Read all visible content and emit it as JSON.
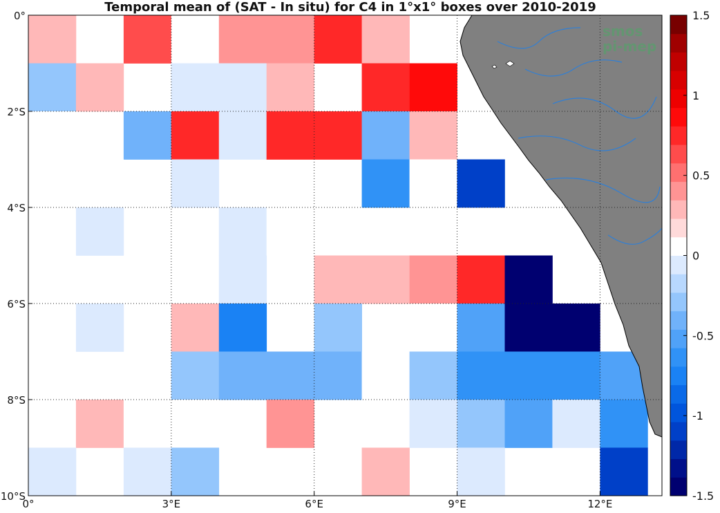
{
  "chart_data": {
    "type": "heatmap",
    "title": "Temporal mean of (SAT - In situ) for C4 in 1°x1° boxes over 2010-2019",
    "x_tick_labels": [
      "0°",
      "3°E",
      "6°E",
      "9°E",
      "12°E"
    ],
    "y_tick_labels": [
      "0°",
      "2°S",
      "4°S",
      "6°S",
      "8°S",
      "10°S"
    ],
    "x_ticks": [
      0,
      3,
      6,
      9,
      12
    ],
    "y_ticks": [
      0,
      -2,
      -4,
      -6,
      -8,
      -10
    ],
    "xlim": [
      0,
      13.3
    ],
    "ylim": [
      -10,
      0
    ],
    "grid": true,
    "colorbar": {
      "clim": [
        -1.5,
        1.5
      ],
      "levels": 26,
      "tick_values": [
        1.5,
        1,
        0.5,
        0,
        -0.5,
        -1,
        -1.5
      ],
      "tick_labels": [
        "1.5",
        "1",
        "0.5",
        "0",
        "-0.5",
        "-1",
        "-1.5"
      ],
      "colors": [
        "#000070",
        "#00108a",
        "#0028a8",
        "#0040c8",
        "#0055dc",
        "#0a6ae8",
        "#1a82f4",
        "#3092f6",
        "#50a2f8",
        "#70b2fa",
        "#94c6fc",
        "#b8d8fe",
        "#dceafe",
        "#ffffff",
        "#ffdada",
        "#ffb8b8",
        "#ff9494",
        "#ff7070",
        "#ff4c4c",
        "#ff2828",
        "#ff0a0a",
        "#ee0000",
        "#d80000",
        "#c00000",
        "#a00000",
        "#780000"
      ]
    },
    "cells": [
      {
        "x": 0,
        "y": 0,
        "v": 0.25
      },
      {
        "x": 2,
        "y": 0,
        "v": 0.6
      },
      {
        "x": 3,
        "y": 0,
        "v": 0.1
      },
      {
        "x": 4,
        "y": 0,
        "v": 0.4
      },
      {
        "x": 5,
        "y": 0,
        "v": 0.4
      },
      {
        "x": 6,
        "y": 0,
        "v": 0.7
      },
      {
        "x": 7,
        "y": 0,
        "v": 0.25
      },
      {
        "x": 0,
        "y": -1,
        "v": -0.25
      },
      {
        "x": 1,
        "y": -1,
        "v": 0.25
      },
      {
        "x": 3,
        "y": -1,
        "v": -0.1
      },
      {
        "x": 4,
        "y": -1,
        "v": -0.1
      },
      {
        "x": 5,
        "y": -1,
        "v": 0.25
      },
      {
        "x": 7,
        "y": -1,
        "v": 0.7
      },
      {
        "x": 8,
        "y": -1,
        "v": 0.9
      },
      {
        "x": 0,
        "y": -2,
        "v": 0.1
      },
      {
        "x": 2,
        "y": -2,
        "v": -0.4
      },
      {
        "x": 3,
        "y": -2,
        "v": 0.7
      },
      {
        "x": 4,
        "y": -2,
        "v": -0.1
      },
      {
        "x": 5,
        "y": -2,
        "v": 0.7
      },
      {
        "x": 6,
        "y": -2,
        "v": 0.7
      },
      {
        "x": 7,
        "y": -2,
        "v": -0.35
      },
      {
        "x": 8,
        "y": -2,
        "v": 0.25
      },
      {
        "x": 0,
        "y": -3,
        "v": 0.1
      },
      {
        "x": 1,
        "y": -3,
        "v": 0.1
      },
      {
        "x": 3,
        "y": -3,
        "v": -0.1
      },
      {
        "x": 7,
        "y": -3,
        "v": -0.65
      },
      {
        "x": 8,
        "y": -3,
        "v": 0.1
      },
      {
        "x": 9,
        "y": -3,
        "v": -1.15
      },
      {
        "x": 1,
        "y": -4,
        "v": -0.1
      },
      {
        "x": 4,
        "y": -4,
        "v": -0.1
      },
      {
        "x": 5,
        "y": -4,
        "v": 0.1
      },
      {
        "x": 0,
        "y": -5,
        "v": 0.1
      },
      {
        "x": 2,
        "y": -5,
        "v": 0.1
      },
      {
        "x": 4,
        "y": -5,
        "v": -0.1
      },
      {
        "x": 6,
        "y": -5,
        "v": 0.25
      },
      {
        "x": 7,
        "y": -5,
        "v": 0.25
      },
      {
        "x": 8,
        "y": -5,
        "v": 0.4
      },
      {
        "x": 9,
        "y": -5,
        "v": 0.7
      },
      {
        "x": 10,
        "y": -5,
        "v": -1.5
      },
      {
        "x": 1,
        "y": -6,
        "v": -0.1
      },
      {
        "x": 3,
        "y": -6,
        "v": 0.25
      },
      {
        "x": 4,
        "y": -6,
        "v": -0.8
      },
      {
        "x": 6,
        "y": -6,
        "v": -0.25
      },
      {
        "x": 8,
        "y": -6,
        "v": 0.1
      },
      {
        "x": 9,
        "y": -6,
        "v": -0.5
      },
      {
        "x": 10,
        "y": -6,
        "v": -1.5
      },
      {
        "x": 11,
        "y": -6,
        "v": -1.4
      },
      {
        "x": 0,
        "y": -7,
        "v": 0.1
      },
      {
        "x": 3,
        "y": -7,
        "v": -0.3
      },
      {
        "x": 4,
        "y": -7,
        "v": -0.35
      },
      {
        "x": 5,
        "y": -7,
        "v": -0.35
      },
      {
        "x": 6,
        "y": -7,
        "v": -0.35
      },
      {
        "x": 7,
        "y": -7,
        "v": 0.1
      },
      {
        "x": 8,
        "y": -7,
        "v": -0.25
      },
      {
        "x": 9,
        "y": -7,
        "v": -0.6
      },
      {
        "x": 10,
        "y": -7,
        "v": -0.6
      },
      {
        "x": 11,
        "y": -7,
        "v": -0.6
      },
      {
        "x": 12,
        "y": -7,
        "v": -0.5
      },
      {
        "x": 1,
        "y": -8,
        "v": 0.25
      },
      {
        "x": 2,
        "y": -8,
        "v": 0.1
      },
      {
        "x": 3,
        "y": -8,
        "v": 0.1
      },
      {
        "x": 5,
        "y": -8,
        "v": 0.4
      },
      {
        "x": 7,
        "y": -8,
        "v": 0.1
      },
      {
        "x": 8,
        "y": -8,
        "v": -0.1
      },
      {
        "x": 9,
        "y": -8,
        "v": -0.25
      },
      {
        "x": 10,
        "y": -8,
        "v": -0.5
      },
      {
        "x": 11,
        "y": -8,
        "v": -0.1
      },
      {
        "x": 12,
        "y": -8,
        "v": -0.65
      },
      {
        "x": 0,
        "y": -9,
        "v": -0.1
      },
      {
        "x": 2,
        "y": -9,
        "v": -0.1
      },
      {
        "x": 3,
        "y": -9,
        "v": -0.25
      },
      {
        "x": 7,
        "y": -9,
        "v": 0.25
      },
      {
        "x": 9,
        "y": -9,
        "v": -0.1
      },
      {
        "x": 12,
        "y": -9,
        "v": -1.15
      }
    ],
    "land_color": "#808080",
    "river_color": "#2f7fd6"
  },
  "logo": {
    "line1": "smos",
    "line2": "pi-mep",
    "color": "#5f9a6f"
  }
}
